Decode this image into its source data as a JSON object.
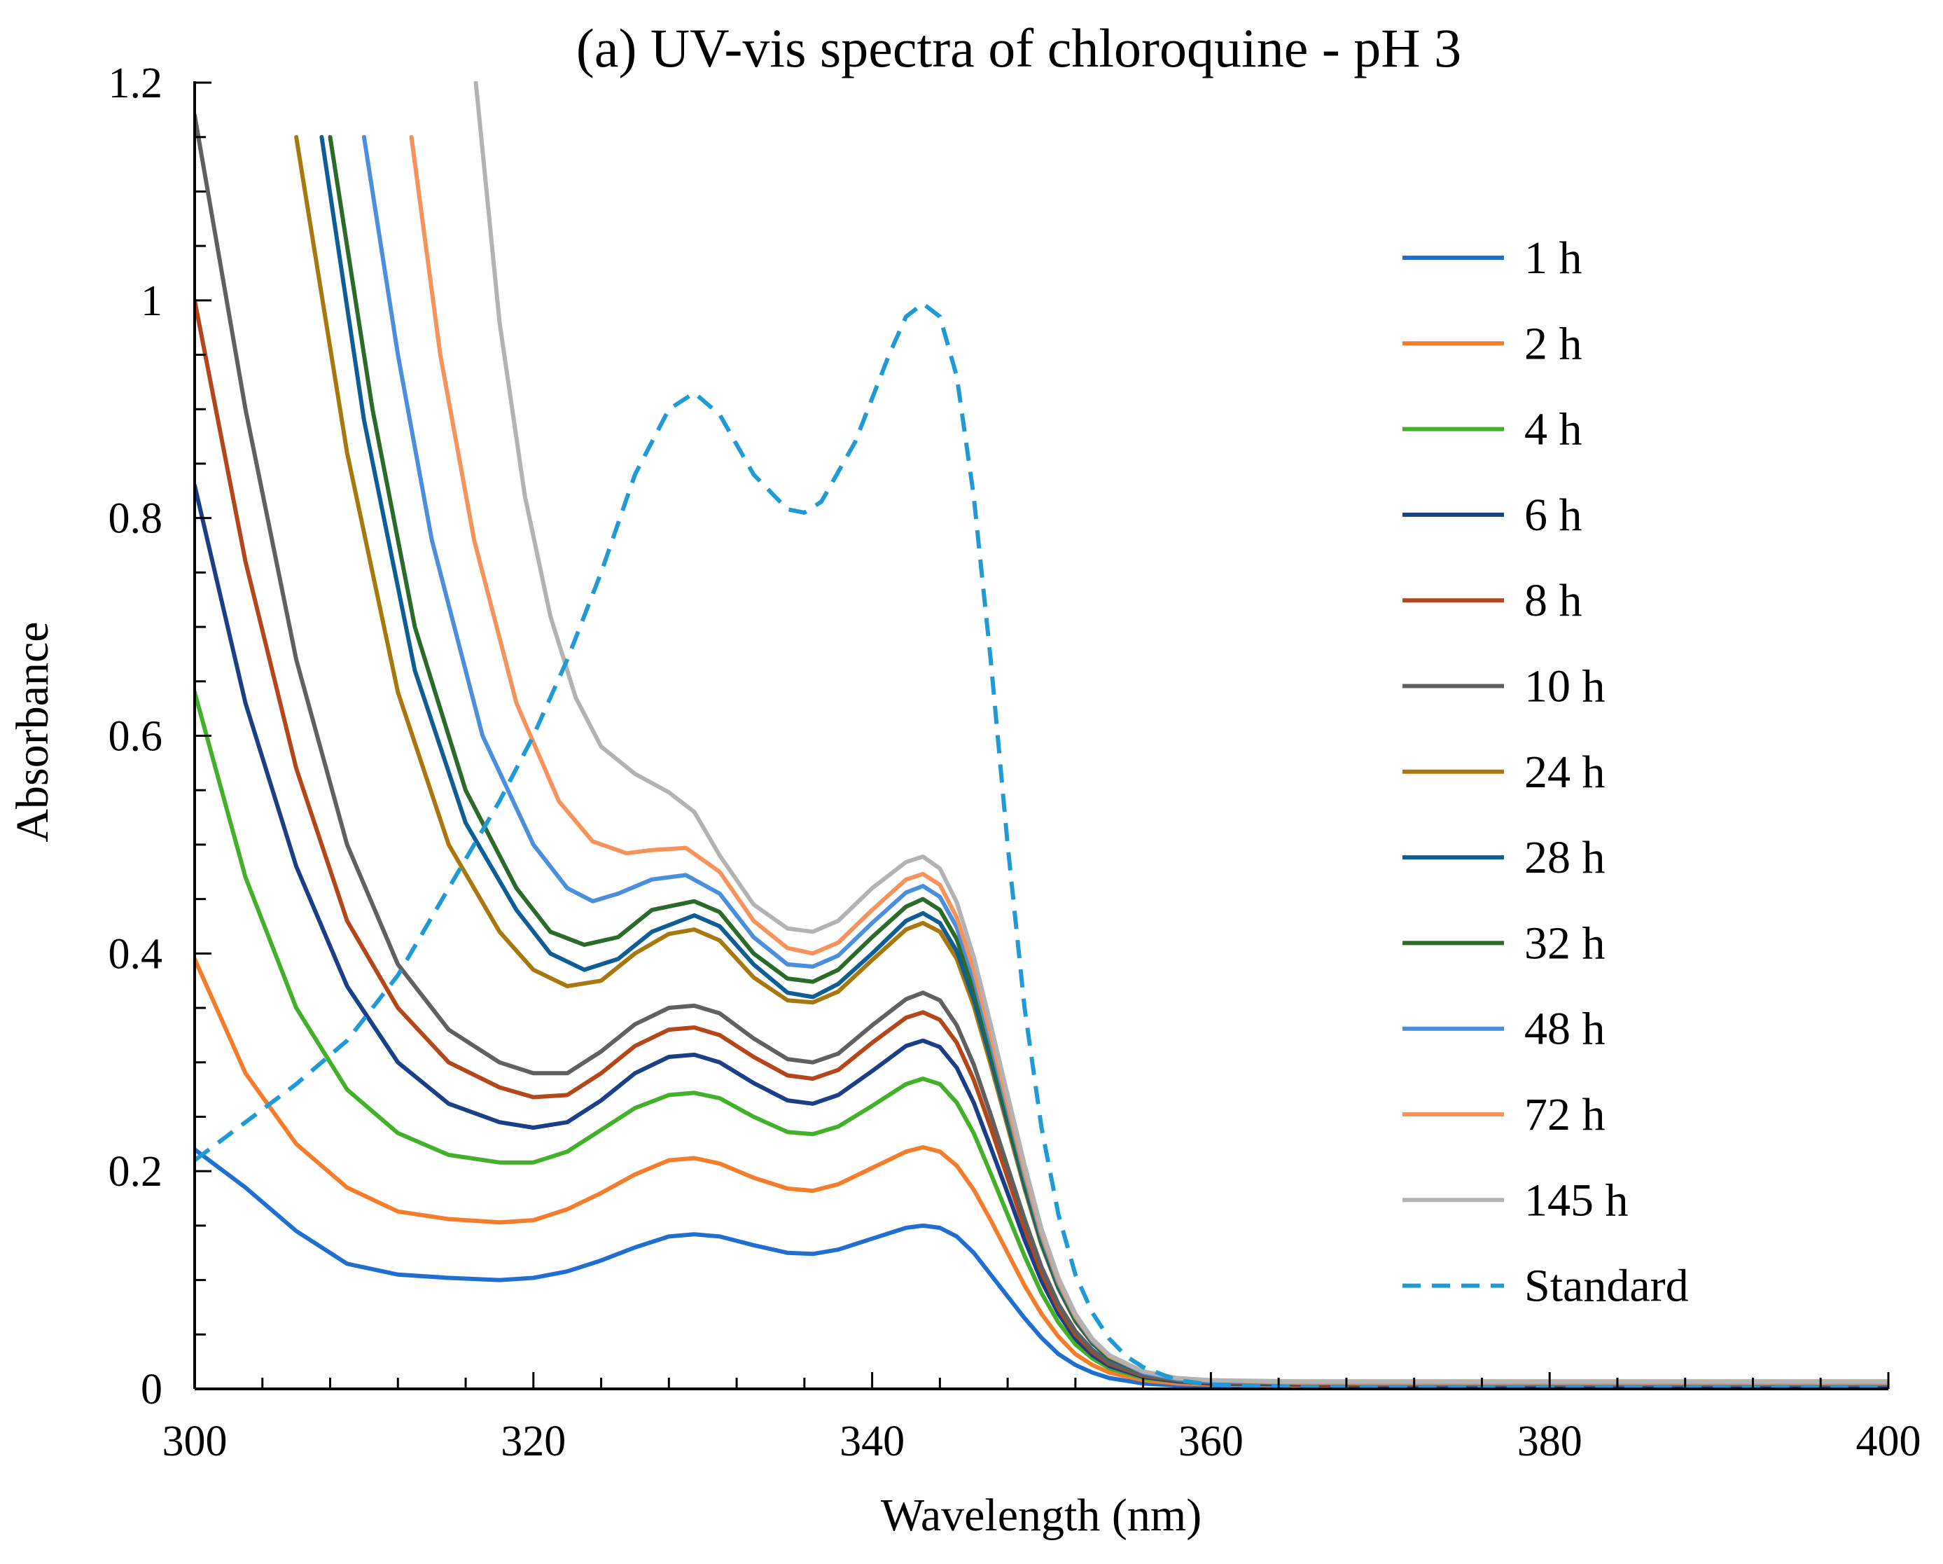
{
  "chart_data": {
    "type": "line",
    "title": "(a) UV-vis spectra of chloroquine - pH 3",
    "xlabel": "Wavelength (nm)",
    "ylabel": "Absorbance",
    "xlim": [
      300,
      400
    ],
    "ylim": [
      0,
      1.2
    ],
    "xticks": [
      300,
      320,
      340,
      360,
      380,
      400
    ],
    "xtick_labels": [
      "300",
      "320",
      "340",
      "360",
      "380",
      "400"
    ],
    "yticks": [
      0,
      0.2,
      0.4,
      0.6,
      0.8,
      1,
      1.2
    ],
    "ytick_labels": [
      "0",
      "0.2",
      "0.4",
      "0.6",
      "0.8",
      "1",
      "1.2"
    ],
    "grid": false,
    "legend_position": "right",
    "series": [
      {
        "name": "1 h",
        "label": "1 h",
        "color": "#1f6fd1",
        "dash": false,
        "x": [
          300,
          303,
          306,
          309,
          312,
          315,
          318,
          320,
          322,
          324,
          326,
          328,
          329.5,
          331,
          333,
          335,
          336.5,
          338,
          340,
          342,
          343,
          344,
          345,
          346,
          347,
          348,
          349,
          350,
          351,
          352,
          353,
          354,
          356,
          358,
          360,
          365,
          370,
          380,
          390,
          400
        ],
        "y": [
          0.22,
          0.185,
          0.145,
          0.115,
          0.105,
          0.102,
          0.1,
          0.102,
          0.108,
          0.118,
          0.13,
          0.14,
          0.142,
          0.14,
          0.132,
          0.125,
          0.124,
          0.128,
          0.138,
          0.148,
          0.15,
          0.148,
          0.14,
          0.125,
          0.105,
          0.085,
          0.065,
          0.047,
          0.032,
          0.022,
          0.015,
          0.01,
          0.005,
          0.003,
          0.002,
          0.001,
          0.001,
          0.0005,
          0.0005,
          0.0005
        ]
      },
      {
        "name": "2 h",
        "label": "2 h",
        "color": "#f57c2a",
        "dash": false,
        "x": [
          300,
          303,
          306,
          309,
          312,
          315,
          318,
          320,
          322,
          324,
          326,
          328,
          329.5,
          331,
          333,
          335,
          336.5,
          338,
          340,
          342,
          343,
          344,
          345,
          346,
          347,
          348,
          349,
          350,
          351,
          352,
          353,
          354,
          356,
          358,
          360,
          365,
          370,
          380,
          390,
          400
        ],
        "y": [
          0.395,
          0.29,
          0.225,
          0.185,
          0.163,
          0.156,
          0.153,
          0.155,
          0.165,
          0.18,
          0.197,
          0.21,
          0.212,
          0.207,
          0.194,
          0.184,
          0.182,
          0.188,
          0.203,
          0.218,
          0.222,
          0.218,
          0.205,
          0.183,
          0.155,
          0.125,
          0.095,
          0.069,
          0.048,
          0.032,
          0.022,
          0.015,
          0.008,
          0.005,
          0.004,
          0.003,
          0.002,
          0.002,
          0.002,
          0.002
        ]
      },
      {
        "name": "4 h",
        "label": "4 h",
        "color": "#43b02a",
        "dash": false,
        "x": [
          300,
          303,
          306,
          309,
          312,
          315,
          318,
          320,
          322,
          324,
          326,
          328,
          329.5,
          331,
          333,
          335,
          336.5,
          338,
          340,
          342,
          343,
          344,
          345,
          346,
          347,
          348,
          349,
          350,
          351,
          352,
          353,
          354,
          356,
          358,
          360,
          365,
          370,
          380,
          390,
          400
        ],
        "y": [
          0.64,
          0.47,
          0.35,
          0.275,
          0.235,
          0.215,
          0.208,
          0.208,
          0.218,
          0.238,
          0.258,
          0.27,
          0.272,
          0.267,
          0.25,
          0.236,
          0.234,
          0.241,
          0.26,
          0.28,
          0.285,
          0.28,
          0.263,
          0.235,
          0.198,
          0.16,
          0.122,
          0.088,
          0.061,
          0.041,
          0.028,
          0.019,
          0.01,
          0.007,
          0.005,
          0.004,
          0.003,
          0.003,
          0.003,
          0.003
        ]
      },
      {
        "name": "6 h",
        "label": "6 h",
        "color": "#1a3f87",
        "dash": false,
        "x": [
          300,
          303,
          306,
          309,
          312,
          315,
          318,
          320,
          322,
          324,
          326,
          328,
          329.5,
          331,
          333,
          335,
          336.5,
          338,
          340,
          342,
          343,
          344,
          345,
          346,
          347,
          348,
          349,
          350,
          351,
          352,
          353,
          354,
          356,
          358,
          360,
          365,
          370,
          380,
          390,
          400
        ],
        "y": [
          0.83,
          0.63,
          0.48,
          0.37,
          0.3,
          0.262,
          0.245,
          0.24,
          0.245,
          0.265,
          0.29,
          0.305,
          0.307,
          0.3,
          0.281,
          0.265,
          0.262,
          0.27,
          0.292,
          0.315,
          0.32,
          0.314,
          0.295,
          0.263,
          0.222,
          0.18,
          0.137,
          0.099,
          0.069,
          0.046,
          0.031,
          0.021,
          0.011,
          0.007,
          0.005,
          0.004,
          0.003,
          0.003,
          0.003,
          0.003
        ]
      },
      {
        "name": "8 h",
        "label": "8 h",
        "color": "#b4461a",
        "dash": false,
        "x": [
          300,
          303,
          306,
          309,
          312,
          315,
          318,
          320,
          322,
          324,
          326,
          328,
          329.5,
          331,
          333,
          335,
          336.5,
          338,
          340,
          342,
          343,
          344,
          345,
          346,
          347,
          348,
          349,
          350,
          351,
          352,
          353,
          354,
          356,
          358,
          360,
          365,
          370,
          380,
          390,
          400
        ],
        "y": [
          1.0,
          0.76,
          0.57,
          0.43,
          0.35,
          0.3,
          0.277,
          0.268,
          0.27,
          0.29,
          0.315,
          0.33,
          0.332,
          0.325,
          0.305,
          0.288,
          0.285,
          0.293,
          0.318,
          0.341,
          0.346,
          0.339,
          0.318,
          0.284,
          0.24,
          0.194,
          0.148,
          0.107,
          0.074,
          0.05,
          0.034,
          0.023,
          0.012,
          0.008,
          0.006,
          0.005,
          0.004,
          0.004,
          0.004,
          0.004
        ]
      },
      {
        "name": "10 h",
        "label": "10 h",
        "color": "#606060",
        "dash": false,
        "x": [
          300,
          303,
          306,
          309,
          312,
          315,
          318,
          320,
          322,
          324,
          326,
          328,
          329.5,
          331,
          333,
          335,
          336.5,
          338,
          340,
          342,
          343,
          344,
          345,
          346,
          347,
          348,
          349,
          350,
          351,
          352,
          353,
          354,
          356,
          358,
          360,
          365,
          370,
          380,
          390,
          400
        ],
        "y": [
          1.17,
          0.9,
          0.67,
          0.5,
          0.39,
          0.33,
          0.3,
          0.29,
          0.29,
          0.31,
          0.335,
          0.35,
          0.352,
          0.345,
          0.322,
          0.303,
          0.3,
          0.308,
          0.334,
          0.358,
          0.364,
          0.357,
          0.334,
          0.298,
          0.252,
          0.204,
          0.156,
          0.112,
          0.078,
          0.053,
          0.036,
          0.024,
          0.013,
          0.008,
          0.006,
          0.005,
          0.005,
          0.004,
          0.004,
          0.004
        ]
      },
      {
        "name": "24 h",
        "label": "24 h",
        "color": "#a8780e",
        "dash": false,
        "x": [
          306,
          309,
          312,
          315,
          318,
          320,
          322,
          324,
          326,
          328,
          329.5,
          331,
          333,
          335,
          336.5,
          338,
          340,
          342,
          343,
          344,
          345,
          346,
          347,
          348,
          349,
          350,
          351,
          352,
          353,
          354,
          356,
          358,
          360,
          365,
          370,
          380,
          390,
          400
        ],
        "y": [
          1.15,
          0.86,
          0.64,
          0.5,
          0.42,
          0.385,
          0.37,
          0.375,
          0.4,
          0.418,
          0.422,
          0.412,
          0.378,
          0.357,
          0.355,
          0.365,
          0.394,
          0.422,
          0.428,
          0.42,
          0.395,
          0.352,
          0.298,
          0.241,
          0.184,
          0.132,
          0.092,
          0.062,
          0.042,
          0.028,
          0.015,
          0.009,
          0.007,
          0.006,
          0.005,
          0.005,
          0.005,
          0.005
        ]
      },
      {
        "name": "28 h",
        "label": "28 h",
        "color": "#0d5e96",
        "dash": false,
        "x": [
          307.5,
          310,
          313,
          316,
          319,
          321,
          323,
          325,
          327,
          329.5,
          331,
          333,
          335,
          336.5,
          338,
          340,
          342,
          343,
          344,
          345,
          346,
          347,
          348,
          349,
          350,
          351,
          352,
          353,
          354,
          356,
          358,
          360,
          365,
          370,
          380,
          390,
          400
        ],
        "y": [
          1.15,
          0.89,
          0.66,
          0.52,
          0.44,
          0.4,
          0.385,
          0.395,
          0.42,
          0.435,
          0.425,
          0.39,
          0.364,
          0.36,
          0.372,
          0.4,
          0.43,
          0.437,
          0.428,
          0.402,
          0.358,
          0.303,
          0.245,
          0.187,
          0.134,
          0.093,
          0.063,
          0.042,
          0.028,
          0.015,
          0.009,
          0.007,
          0.006,
          0.005,
          0.005,
          0.005,
          0.005
        ]
      },
      {
        "name": "32 h",
        "label": "32 h",
        "color": "#2a6b2a",
        "dash": false,
        "x": [
          308,
          310.5,
          313,
          316,
          319,
          321,
          323,
          325,
          327,
          329.5,
          331,
          333,
          335,
          336.5,
          338,
          340,
          342,
          343,
          344,
          345,
          346,
          347,
          348,
          349,
          350,
          351,
          352,
          353,
          354,
          356,
          358,
          360,
          365,
          370,
          380,
          390,
          400
        ],
        "y": [
          1.15,
          0.9,
          0.7,
          0.55,
          0.46,
          0.42,
          0.408,
          0.415,
          0.44,
          0.448,
          0.438,
          0.4,
          0.377,
          0.374,
          0.385,
          0.415,
          0.443,
          0.45,
          0.44,
          0.413,
          0.367,
          0.31,
          0.25,
          0.191,
          0.137,
          0.095,
          0.064,
          0.043,
          0.029,
          0.015,
          0.009,
          0.007,
          0.006,
          0.005,
          0.005,
          0.005,
          0.005
        ]
      },
      {
        "name": "48 h",
        "label": "48 h",
        "color": "#4b8fdc",
        "dash": false,
        "x": [
          310,
          312,
          314,
          317,
          320,
          322,
          323.5,
          325,
          327,
          329,
          331,
          333,
          335,
          336.5,
          338,
          340,
          342,
          343,
          344,
          345,
          346,
          347,
          348,
          349,
          350,
          351,
          352,
          353,
          354,
          356,
          358,
          360,
          365,
          370,
          380,
          390,
          400
        ],
        "y": [
          1.15,
          0.95,
          0.78,
          0.6,
          0.5,
          0.46,
          0.448,
          0.455,
          0.468,
          0.472,
          0.455,
          0.415,
          0.39,
          0.388,
          0.398,
          0.428,
          0.456,
          0.462,
          0.452,
          0.424,
          0.377,
          0.318,
          0.257,
          0.196,
          0.14,
          0.097,
          0.066,
          0.044,
          0.03,
          0.015,
          0.009,
          0.007,
          0.006,
          0.005,
          0.005,
          0.005,
          0.005
        ]
      },
      {
        "name": "72 h",
        "label": "72 h",
        "color": "#f5935a",
        "dash": false,
        "x": [
          312.8,
          314.5,
          316.5,
          319,
          321.5,
          323.5,
          325.5,
          327,
          329,
          331,
          333,
          335,
          336.5,
          338,
          340,
          342,
          343,
          344,
          345,
          346,
          347,
          348,
          349,
          350,
          351,
          352,
          353,
          354,
          356,
          358,
          360,
          365,
          370,
          380,
          390,
          400
        ],
        "y": [
          1.15,
          0.95,
          0.78,
          0.63,
          0.54,
          0.503,
          0.492,
          0.495,
          0.497,
          0.475,
          0.43,
          0.405,
          0.4,
          0.41,
          0.44,
          0.468,
          0.473,
          0.463,
          0.433,
          0.385,
          0.325,
          0.262,
          0.2,
          0.143,
          0.099,
          0.067,
          0.045,
          0.03,
          0.016,
          0.01,
          0.008,
          0.006,
          0.006,
          0.006,
          0.006,
          0.006
        ]
      },
      {
        "name": "145 h",
        "label": "145 h",
        "color": "#b3b3b3",
        "dash": false,
        "x": [
          316.6,
          318,
          319.5,
          321,
          322.5,
          324,
          326,
          328,
          329.5,
          331,
          333,
          335,
          336.5,
          338,
          340,
          342,
          343,
          344,
          345,
          346,
          347,
          348,
          349,
          350,
          351,
          352,
          353,
          354,
          356,
          358,
          360,
          365,
          370,
          380,
          390,
          400
        ],
        "y": [
          1.2,
          0.98,
          0.82,
          0.71,
          0.635,
          0.59,
          0.565,
          0.548,
          0.53,
          0.49,
          0.445,
          0.423,
          0.42,
          0.43,
          0.46,
          0.484,
          0.489,
          0.478,
          0.447,
          0.397,
          0.335,
          0.27,
          0.206,
          0.147,
          0.102,
          0.069,
          0.046,
          0.031,
          0.016,
          0.01,
          0.008,
          0.007,
          0.007,
          0.007,
          0.007,
          0.007
        ]
      },
      {
        "name": "Standard",
        "label": "Standard",
        "color": "#1f9ad6",
        "dash": true,
        "x": [
          300,
          303,
          306,
          309,
          312,
          315,
          318,
          320,
          322,
          324,
          326,
          328,
          329.5,
          331,
          333,
          335,
          336,
          337,
          339,
          341,
          342,
          343,
          344,
          345,
          346,
          347,
          348,
          349,
          350,
          351,
          352,
          353,
          354,
          355,
          356,
          358,
          360,
          365,
          370,
          380,
          390,
          400
        ],
        "y": [
          0.21,
          0.245,
          0.28,
          0.32,
          0.38,
          0.46,
          0.54,
          0.6,
          0.67,
          0.75,
          0.84,
          0.9,
          0.915,
          0.895,
          0.84,
          0.808,
          0.805,
          0.815,
          0.87,
          0.95,
          0.985,
          0.997,
          0.985,
          0.93,
          0.82,
          0.67,
          0.5,
          0.35,
          0.24,
          0.16,
          0.105,
          0.07,
          0.046,
          0.03,
          0.02,
          0.008,
          0.004,
          0.002,
          0.001,
          0.001,
          0.001,
          0.001
        ]
      }
    ]
  }
}
